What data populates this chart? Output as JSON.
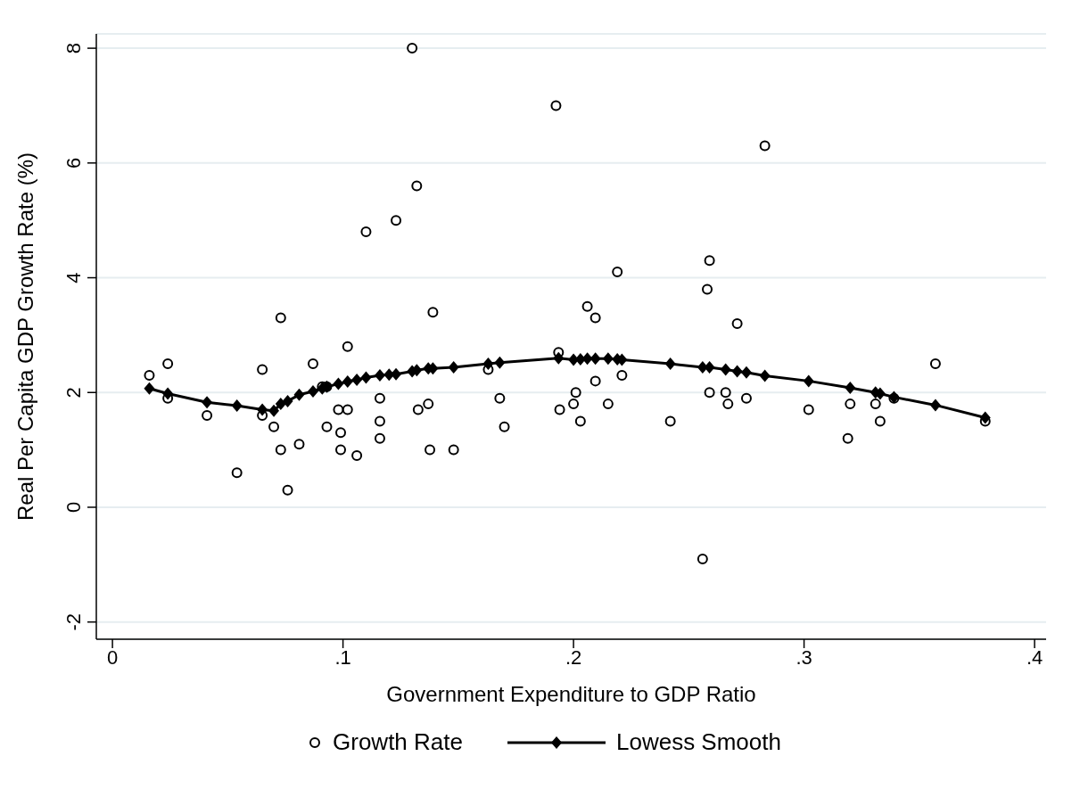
{
  "chart_data": {
    "type": "scatter",
    "xlabel": "Government Expenditure to GDP Ratio",
    "ylabel": "Real Per Capita GDP Growth Rate (%)",
    "xlim": [
      -0.007,
      0.405
    ],
    "xticks": [
      {
        "value": 0,
        "label": "0"
      },
      {
        "value": 0.1,
        "label": ".1"
      },
      {
        "value": 0.2,
        "label": ".2"
      },
      {
        "value": 0.3,
        "label": ".3"
      },
      {
        "value": 0.4,
        "label": ".4"
      }
    ],
    "ylim": [
      -2.3,
      8.25
    ],
    "yticks": [
      -2,
      0,
      2,
      4,
      6,
      8
    ],
    "grid": "y",
    "legend": "bottom",
    "series": [
      {
        "name": "Growth Rate",
        "type": "scatter",
        "marker": "circle",
        "color": "#000000",
        "x": [
          0.016,
          0.024,
          0.024,
          0.041,
          0.065,
          0.065,
          0.073,
          0.054,
          0.07,
          0.073,
          0.076,
          0.081,
          0.087,
          0.102,
          0.093,
          0.098,
          0.102,
          0.099,
          0.099,
          0.106,
          0.116,
          0.116,
          0.116,
          0.091,
          0.093,
          0.11,
          0.123,
          0.132,
          0.13,
          0.139,
          0.1326,
          0.137,
          0.1377,
          0.148,
          0.163,
          0.168,
          0.17,
          0.1935,
          0.219,
          0.206,
          0.2095,
          0.194,
          0.201,
          0.2,
          0.203,
          0.2095,
          0.221,
          0.215,
          0.242,
          0.1924,
          0.259,
          0.258,
          0.271,
          0.256,
          0.259,
          0.266,
          0.267,
          0.275,
          0.302,
          0.319,
          0.32,
          0.331,
          0.333,
          0.339,
          0.357,
          0.3786,
          0.283
        ],
        "values": [
          2.3,
          2.5,
          1.9,
          1.6,
          2.4,
          1.6,
          3.3,
          0.6,
          1.4,
          1.0,
          0.3,
          1.1,
          2.5,
          2.8,
          1.4,
          1.7,
          1.7,
          1.3,
          1.0,
          0.9,
          1.9,
          1.5,
          1.2,
          2.1,
          2.1,
          4.8,
          5.0,
          5.6,
          8.0,
          3.4,
          1.7,
          1.8,
          1.0,
          1.0,
          2.4,
          1.9,
          1.4,
          2.7,
          4.1,
          3.5,
          3.3,
          1.7,
          2.0,
          1.8,
          1.5,
          2.2,
          2.3,
          1.8,
          1.5,
          7.0,
          4.3,
          3.8,
          3.2,
          -0.9,
          2.0,
          2.0,
          1.8,
          1.9,
          1.7,
          1.2,
          1.8,
          1.8,
          1.5,
          1.9,
          2.5,
          1.5,
          6.3
        ]
      },
      {
        "name": "Lowess Smooth",
        "type": "line",
        "marker": "diamond",
        "line_style": "solid",
        "color": "#000000",
        "x": [
          0.016,
          0.024,
          0.041,
          0.054,
          0.065,
          0.07,
          0.073,
          0.076,
          0.081,
          0.087,
          0.091,
          0.093,
          0.098,
          0.102,
          0.106,
          0.11,
          0.116,
          0.12,
          0.123,
          0.13,
          0.132,
          0.137,
          0.139,
          0.148,
          0.163,
          0.168,
          0.1935,
          0.2,
          0.203,
          0.206,
          0.2095,
          0.215,
          0.219,
          0.221,
          0.242,
          0.256,
          0.259,
          0.266,
          0.271,
          0.275,
          0.283,
          0.302,
          0.319,
          0.32,
          0.331,
          0.333,
          0.339,
          0.357,
          0.3786
        ],
        "values": [
          2.07,
          1.98,
          1.83,
          1.77,
          1.7,
          1.68,
          1.8,
          1.85,
          1.96,
          2.02,
          2.07,
          2.1,
          2.15,
          2.19,
          2.22,
          2.26,
          2.3,
          2.31,
          2.32,
          2.37,
          2.39,
          2.42,
          2.42,
          2.44,
          2.5,
          2.52,
          2.6,
          2.57,
          2.58,
          2.59,
          2.59,
          2.59,
          2.58,
          2.57,
          2.5,
          2.44,
          2.44,
          2.4,
          2.37,
          2.35,
          2.29,
          2.2,
          null,
          2.08,
          2.0,
          1.98,
          1.92,
          1.78,
          1.56
        ]
      }
    ]
  }
}
